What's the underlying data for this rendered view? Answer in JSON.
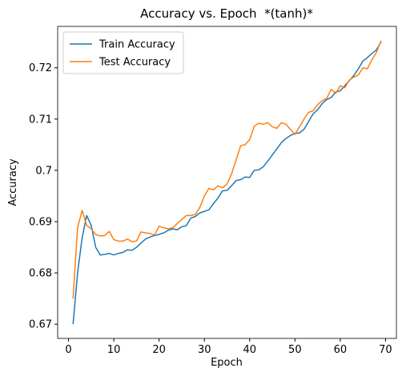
{
  "chart_data": {
    "type": "line",
    "title": "Accuracy vs. Epoch  *(tanh)*",
    "x_label": "Epoch",
    "y_label": "Accuracy",
    "x": [
      1,
      2,
      3,
      4,
      5,
      6,
      7,
      8,
      9,
      10,
      11,
      12,
      13,
      14,
      15,
      16,
      17,
      18,
      19,
      20,
      21,
      22,
      23,
      24,
      25,
      26,
      27,
      28,
      29,
      30,
      31,
      32,
      33,
      34,
      35,
      36,
      37,
      38,
      39,
      40,
      41,
      42,
      43,
      44,
      45,
      46,
      47,
      48,
      49,
      50,
      51,
      52,
      53,
      54,
      55,
      56,
      57,
      58,
      59,
      60,
      61,
      62,
      63,
      64,
      65,
      66,
      67,
      68,
      69
    ],
    "series": [
      {
        "name": "Train Accuracy",
        "color": "#1f77b4",
        "values": [
          0.67,
          0.68,
          0.6868,
          0.6912,
          0.6893,
          0.685,
          0.6835,
          0.6836,
          0.6838,
          0.6835,
          0.6838,
          0.684,
          0.6845,
          0.6844,
          0.685,
          0.6858,
          0.6866,
          0.687,
          0.6873,
          0.6875,
          0.6878,
          0.6883,
          0.6886,
          0.6884,
          0.689,
          0.6892,
          0.6907,
          0.691,
          0.6917,
          0.692,
          0.6923,
          0.6935,
          0.6946,
          0.696,
          0.6961,
          0.697,
          0.698,
          0.6982,
          0.6987,
          0.6986,
          0.7,
          0.7001,
          0.7007,
          0.7018,
          0.703,
          0.7042,
          0.7054,
          0.7062,
          0.7068,
          0.7072,
          0.7073,
          0.708,
          0.7095,
          0.711,
          0.7118,
          0.713,
          0.7138,
          0.7142,
          0.7153,
          0.7155,
          0.7165,
          0.7175,
          0.7185,
          0.7198,
          0.7213,
          0.722,
          0.7228,
          0.7235,
          0.725
        ]
      },
      {
        "name": "Test Accuracy",
        "color": "#ff7f0e",
        "values": [
          0.675,
          0.6888,
          0.6922,
          0.6893,
          0.6886,
          0.6875,
          0.6872,
          0.6873,
          0.6881,
          0.6865,
          0.6862,
          0.6862,
          0.6866,
          0.6861,
          0.6862,
          0.688,
          0.6878,
          0.6877,
          0.6874,
          0.6891,
          0.6888,
          0.6886,
          0.6888,
          0.6896,
          0.6904,
          0.6912,
          0.6912,
          0.6914,
          0.6928,
          0.695,
          0.6965,
          0.6962,
          0.697,
          0.6966,
          0.6973,
          0.6993,
          0.702,
          0.7048,
          0.705,
          0.706,
          0.7086,
          0.7092,
          0.709,
          0.7093,
          0.7085,
          0.7082,
          0.7093,
          0.709,
          0.708,
          0.707,
          0.7085,
          0.71,
          0.7113,
          0.7116,
          0.7128,
          0.7136,
          0.714,
          0.7158,
          0.715,
          0.7165,
          0.7161,
          0.7176,
          0.7182,
          0.7186,
          0.72,
          0.7198,
          0.7216,
          0.723,
          0.7253
        ]
      }
    ],
    "xlim": [
      -2.4,
      72.4
    ],
    "xticks": [
      0,
      10,
      20,
      30,
      40,
      50,
      60,
      70
    ],
    "ylim": [
      0.66723,
      0.72807
    ],
    "yticks": [
      0.67,
      0.68,
      0.69,
      0.7,
      0.71,
      0.72
    ],
    "legend": "upper left",
    "grid": false
  }
}
